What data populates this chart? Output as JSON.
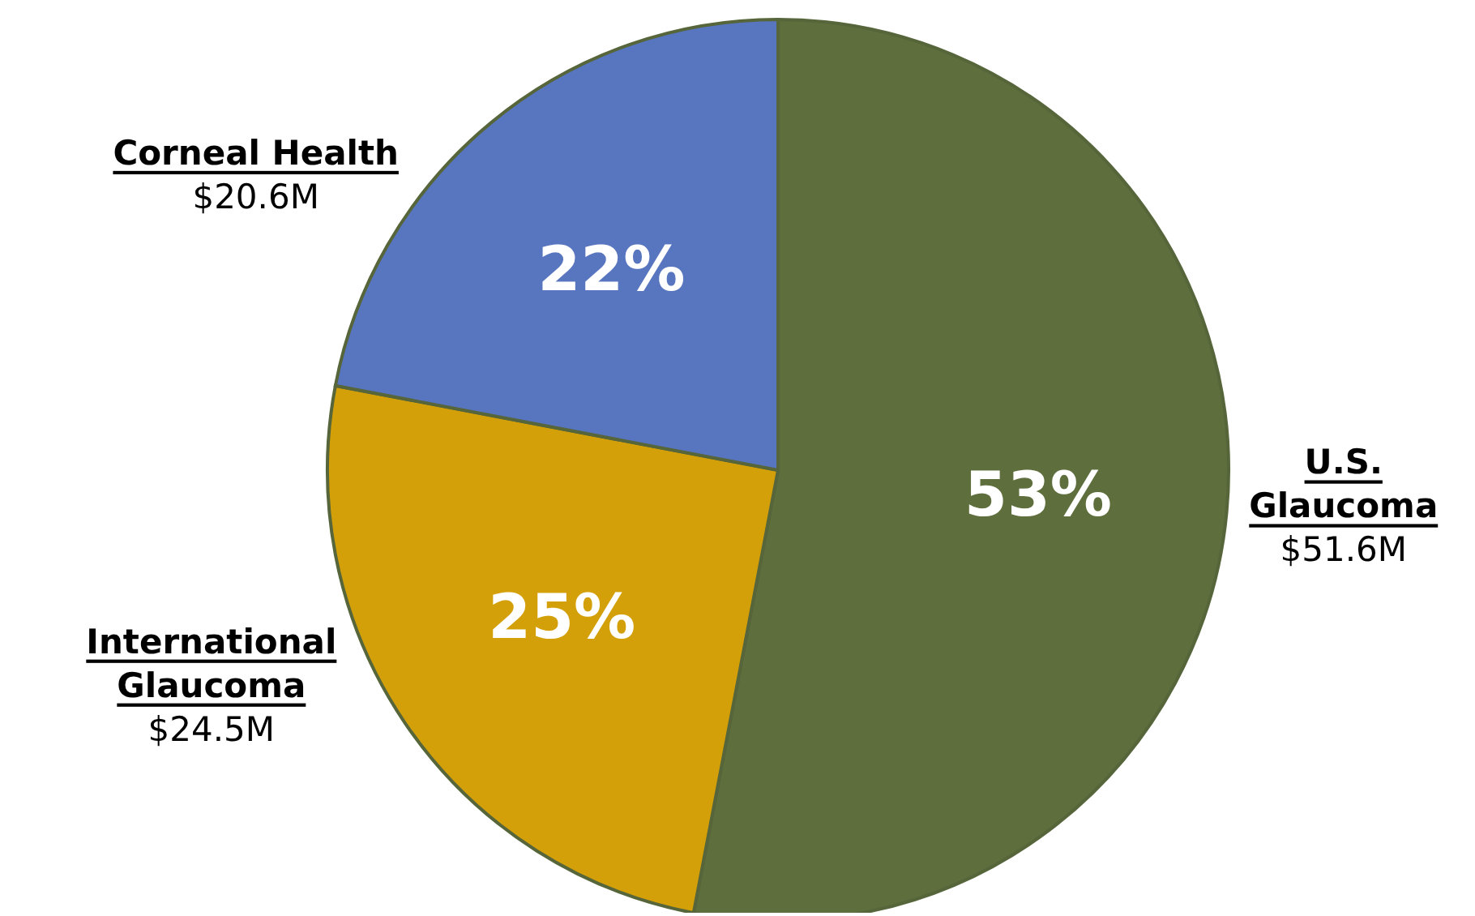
{
  "chart_data": {
    "type": "pie",
    "categories": [
      "U.S. Glaucoma",
      "International Glaucoma",
      "Corneal Health"
    ],
    "values": [
      53,
      25,
      22
    ],
    "colors": [
      "#5e6e3c",
      "#d4a00a",
      "#5875bf"
    ],
    "value_labels": [
      "53%",
      "25%",
      "22%"
    ],
    "annotations": [
      "$51.6M",
      "$24.5M",
      "$20.6M"
    ],
    "legend": false
  }
}
